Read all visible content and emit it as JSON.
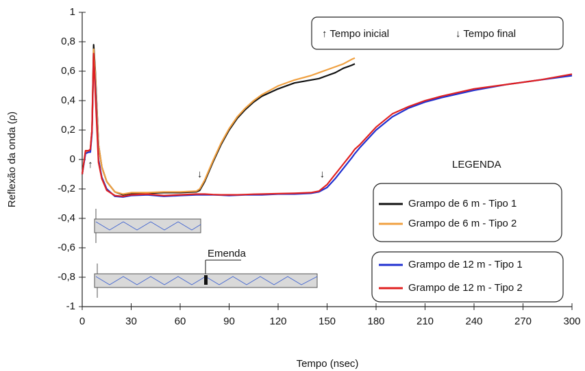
{
  "chart_data": {
    "type": "line",
    "y_label": "Reflexão da onda (ρ)",
    "x_label": "Tempo (nsec)",
    "xlim": [
      0,
      300
    ],
    "xticks": [
      0,
      30,
      60,
      90,
      120,
      150,
      180,
      210,
      240,
      270,
      300
    ],
    "ylim": [
      -1,
      1
    ],
    "yticks": [
      {
        "value": -1,
        "label": "-1"
      },
      {
        "value": -0.8,
        "label": "-0,8"
      },
      {
        "value": -0.6,
        "label": "-0,6"
      },
      {
        "value": -0.4,
        "label": "-0,4"
      },
      {
        "value": -0.2,
        "label": "-0,2"
      },
      0,
      {
        "value": 0.2,
        "label": "0,2"
      },
      {
        "value": 0.4,
        "label": "0,4"
      },
      {
        "value": 0.6,
        "label": "0,6"
      },
      {
        "value": 0.8,
        "label": "0,8"
      },
      1
    ],
    "x": [
      0,
      2,
      4,
      5,
      6,
      7,
      8,
      10,
      12,
      15,
      20,
      25,
      30,
      40,
      50,
      60,
      70,
      72,
      75,
      80,
      85,
      90,
      95,
      100,
      105,
      110,
      120,
      130,
      140,
      145,
      150,
      155,
      160,
      165,
      167,
      170,
      180,
      190,
      200,
      210,
      220,
      240,
      260,
      280,
      300
    ],
    "series": [
      {
        "name": "Grampo de 6 m - Tipo 1",
        "color": "#111111",
        "values": [
          -0.1,
          0.05,
          0.05,
          0.06,
          0.2,
          0.78,
          0.6,
          0.1,
          -0.05,
          -0.15,
          -0.22,
          -0.24,
          -0.23,
          -0.23,
          -0.225,
          -0.225,
          -0.22,
          -0.21,
          -0.15,
          -0.02,
          0.1,
          0.2,
          0.28,
          0.34,
          0.39,
          0.43,
          0.48,
          0.52,
          0.54,
          0.55,
          0.57,
          0.59,
          0.62,
          0.64,
          0.65,
          null,
          null,
          null,
          null,
          null,
          null,
          null,
          null,
          null,
          null
        ]
      },
      {
        "name": "Grampo de 6 m - Tipo 2",
        "color": "#f0a040",
        "values": [
          -0.1,
          0.05,
          0.05,
          0.06,
          0.2,
          0.75,
          0.58,
          0.1,
          -0.05,
          -0.15,
          -0.22,
          -0.235,
          -0.225,
          -0.225,
          -0.22,
          -0.22,
          -0.215,
          -0.2,
          -0.14,
          -0.01,
          0.11,
          0.21,
          0.29,
          0.35,
          0.4,
          0.44,
          0.5,
          0.54,
          0.57,
          0.59,
          0.61,
          0.63,
          0.65,
          0.68,
          0.69,
          null,
          null,
          null,
          null,
          null,
          null,
          null,
          null,
          null,
          null
        ]
      },
      {
        "name": "Grampo de 12 m - Tipo 1",
        "color": "#2030d0",
        "values": [
          -0.1,
          0.04,
          0.05,
          0.05,
          0.18,
          0.7,
          0.5,
          0.0,
          -0.12,
          -0.2,
          -0.25,
          -0.255,
          -0.245,
          -0.24,
          -0.25,
          -0.245,
          -0.24,
          -0.24,
          -0.24,
          -0.24,
          -0.242,
          -0.245,
          -0.243,
          -0.24,
          -0.24,
          -0.24,
          -0.235,
          -0.235,
          -0.23,
          -0.22,
          -0.19,
          -0.13,
          -0.06,
          0.01,
          0.04,
          0.08,
          0.2,
          0.29,
          0.35,
          0.39,
          0.42,
          0.47,
          0.51,
          0.54,
          0.57
        ]
      },
      {
        "name": "Grampo de 12 m - Tipo 2",
        "color": "#e02020",
        "values": [
          -0.1,
          0.06,
          0.06,
          0.07,
          0.2,
          0.72,
          0.45,
          -0.02,
          -0.13,
          -0.21,
          -0.245,
          -0.25,
          -0.24,
          -0.235,
          -0.245,
          -0.24,
          -0.235,
          -0.235,
          -0.235,
          -0.238,
          -0.24,
          -0.24,
          -0.24,
          -0.238,
          -0.236,
          -0.235,
          -0.232,
          -0.23,
          -0.225,
          -0.215,
          -0.17,
          -0.1,
          -0.03,
          0.04,
          0.07,
          0.1,
          0.22,
          0.31,
          0.36,
          0.4,
          0.43,
          0.48,
          0.51,
          0.54,
          0.58
        ]
      }
    ],
    "legend_title": "LEGENDA",
    "markers_note": [
      "↑ Tempo inicial",
      "↓ Tempo final"
    ],
    "annotations": [
      {
        "text": "↑",
        "x": 5,
        "y": 0
      },
      {
        "text": "↓",
        "x": 72,
        "y": -0.15
      },
      {
        "text": "↓",
        "x": 147,
        "y": -0.15
      }
    ],
    "splice_label": "Emenda"
  }
}
